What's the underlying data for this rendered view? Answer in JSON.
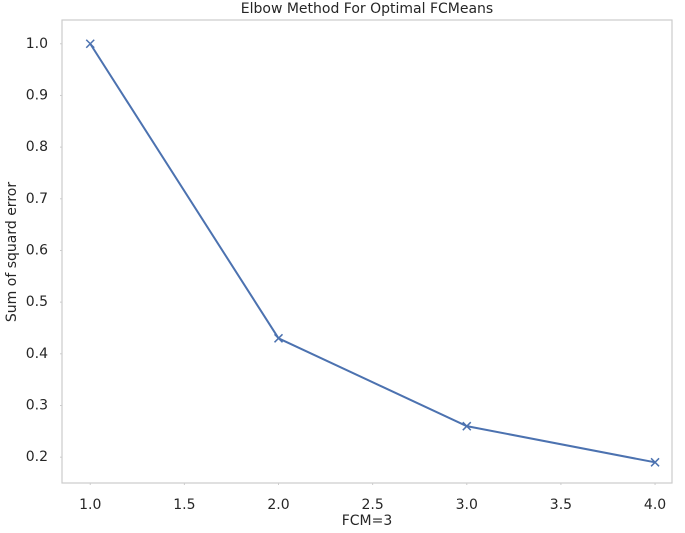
{
  "chart_data": {
    "type": "line",
    "title": "Elbow Method For Optimal FCMeans",
    "x_label": "FCM=3",
    "y_label": "Sum of squard error",
    "x": [
      1,
      2,
      3,
      4
    ],
    "series": [
      {
        "color": "#4c72b0",
        "marker": "x",
        "values": [
          1.0,
          0.43,
          0.26,
          0.19
        ]
      }
    ],
    "xlim": [
      0.85,
      4.09
    ],
    "xticks": [
      {
        "value": 1,
        "label": "1.0"
      },
      1.5,
      {
        "value": 2,
        "label": "2.0"
      },
      2.5,
      {
        "value": 3,
        "label": "3.0"
      },
      3.5,
      {
        "value": 4,
        "label": "4.0"
      }
    ],
    "ylim": [
      0.15,
      1.046
    ],
    "yticks": [
      0.2,
      0.3,
      0.4,
      0.5,
      0.6,
      0.7,
      0.8,
      0.9,
      {
        "value": 1,
        "label": "1.0"
      }
    ],
    "grid": false
  }
}
